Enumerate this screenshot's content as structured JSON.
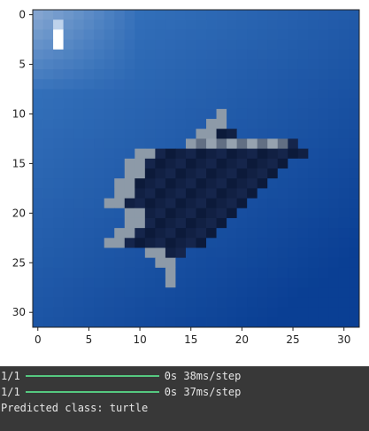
{
  "chart_data": {
    "type": "heatmap",
    "title": "",
    "xlabel": "",
    "ylabel": "",
    "xlim": [
      -0.5,
      31.5
    ],
    "ylim": [
      31.5,
      -0.5
    ],
    "x_ticks": [
      "0",
      "5",
      "10",
      "15",
      "20",
      "25",
      "30"
    ],
    "y_ticks": [
      "0",
      "5",
      "10",
      "15",
      "20",
      "25",
      "30"
    ],
    "image_grid": "32x32 pixel image (low-resolution photo of a sea turtle in blue water)",
    "colors": {
      "ocean_light": "#3a78c0",
      "ocean_deep": "#0a3f94",
      "glare": "#ffffff",
      "turtle_dark": "#0c1a3a",
      "turtle_light": "#b8c4cc"
    }
  },
  "console": {
    "lines": [
      {
        "progress": "1/1",
        "fraction": 1.0,
        "time": "0s 38ms/step"
      },
      {
        "progress": "1/1",
        "fraction": 1.0,
        "time": "0s 37ms/step"
      }
    ],
    "prediction": "Predicted class: turtle"
  }
}
